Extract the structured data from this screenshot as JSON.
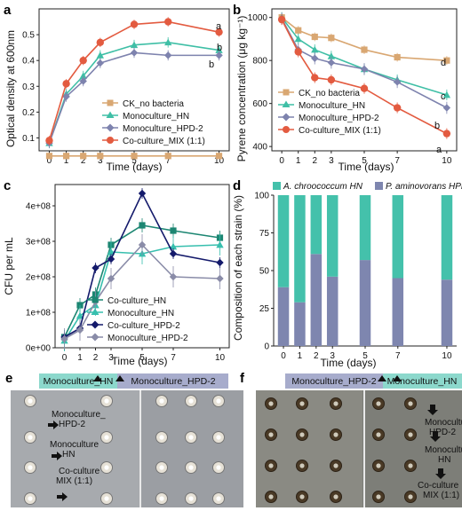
{
  "colors": {
    "ck": "#D9A772",
    "hn": "#3FBFA6",
    "hpd2": "#7E83AE",
    "mix": "#E35B40",
    "c_co_hn": "#1C8672",
    "c_mono_hn": "#37BFAE",
    "c_co_hpd2": "#141A6B",
    "c_mono_hpd2": "#8A8CA8",
    "d_hn": "#44C1AB",
    "d_hpd2": "#7E86AF",
    "head_hn": "#8CD8CC",
    "head_hpd2": "#A7ACCC"
  },
  "panels": {
    "a": {
      "letter": "a"
    },
    "b": {
      "letter": "b"
    },
    "c": {
      "letter": "c"
    },
    "d": {
      "letter": "d"
    },
    "e": {
      "letter": "e"
    },
    "f": {
      "letter": "f"
    }
  },
  "chart_data": [
    {
      "id": "a",
      "type": "line",
      "xlabel": "Time (days)",
      "ylabel": "Optical density at 600nm",
      "x": [
        0,
        1,
        2,
        3,
        5,
        7,
        10
      ],
      "xticks": [
        "0",
        "1",
        "2",
        "3",
        "5",
        "7",
        "10"
      ],
      "ylim": [
        0.05,
        0.6
      ],
      "yticks": [
        "0.1",
        "0.2",
        "0.3",
        "0.4",
        "0.5"
      ],
      "series": [
        {
          "name": "CK_no bacteria",
          "marker": "square",
          "values": [
            0.03,
            0.03,
            0.03,
            0.03,
            0.03,
            0.03,
            0.03
          ]
        },
        {
          "name": "Monoculture_HN",
          "marker": "triangle",
          "values": [
            0.08,
            0.27,
            0.34,
            0.42,
            0.46,
            0.47,
            0.44
          ]
        },
        {
          "name": "Monoculture_HPD-2",
          "marker": "diamond",
          "values": [
            0.08,
            0.26,
            0.32,
            0.39,
            0.43,
            0.42,
            0.42
          ]
        },
        {
          "name": "Co-culture_MIX (1:1)",
          "marker": "circle",
          "values": [
            0.09,
            0.31,
            0.4,
            0.47,
            0.54,
            0.55,
            0.51
          ]
        }
      ],
      "sig_labels": [
        "a",
        "b",
        "b"
      ]
    },
    {
      "id": "b",
      "type": "line",
      "xlabel": "Time (days)",
      "ylabel": "Pyrene concentration (μg kg⁻¹)",
      "x": [
        0,
        1,
        2,
        3,
        5,
        7,
        10
      ],
      "xticks": [
        "0",
        "1",
        "2",
        "3",
        "5",
        "7",
        "10"
      ],
      "ylim": [
        380,
        1040
      ],
      "yticks": [
        "400",
        "600",
        "800",
        "1000"
      ],
      "series": [
        {
          "name": "CK_no bacteria",
          "marker": "square",
          "values": [
            1000,
            940,
            910,
            905,
            850,
            815,
            800
          ]
        },
        {
          "name": "Monoculture_HN",
          "marker": "triangle",
          "values": [
            1000,
            900,
            850,
            820,
            760,
            710,
            640
          ]
        },
        {
          "name": "Monoculture_HPD-2",
          "marker": "diamond",
          "values": [
            995,
            850,
            810,
            790,
            760,
            700,
            580
          ]
        },
        {
          "name": "Co-culture_MIX (1:1)",
          "marker": "circle",
          "values": [
            990,
            840,
            720,
            710,
            670,
            580,
            460
          ]
        }
      ],
      "sig_labels": [
        "d",
        "c",
        "b",
        "a"
      ]
    },
    {
      "id": "c",
      "type": "line",
      "xlabel": "Time (days)",
      "ylabel": "CFU per mL",
      "x": [
        0,
        1,
        2,
        3,
        5,
        7,
        10
      ],
      "xticks": [
        "0",
        "1",
        "2",
        "3",
        "5",
        "7",
        "10"
      ],
      "ylim": [
        0,
        460000000
      ],
      "yticks": [
        "0e+00",
        "1e+08",
        "2e+08",
        "3e+08",
        "4e+08"
      ],
      "series": [
        {
          "name": "Co-culture_HN",
          "marker": "square",
          "values": [
            30000000,
            120000000,
            150000000,
            290000000,
            345000000,
            330000000,
            310000000
          ]
        },
        {
          "name": "Monoculture_HN",
          "marker": "triangle",
          "values": [
            20000000,
            90000000,
            120000000,
            270000000,
            265000000,
            285000000,
            290000000
          ]
        },
        {
          "name": "Co-culture_HPD-2",
          "marker": "diamond",
          "values": [
            30000000,
            55000000,
            225000000,
            250000000,
            435000000,
            265000000,
            240000000
          ]
        },
        {
          "name": "Monoculture_HPD-2",
          "marker": "diamond-light",
          "values": [
            25000000,
            50000000,
            130000000,
            195000000,
            290000000,
            200000000,
            195000000
          ]
        }
      ]
    },
    {
      "id": "d",
      "type": "bar",
      "xlabel": "Time (days)",
      "ylabel": "Composition of each strain (%)",
      "categories": [
        "0",
        "1",
        "2",
        "3",
        "5",
        "7",
        "10"
      ],
      "ylim": [
        0,
        100
      ],
      "yticks": [
        "0",
        "25",
        "50",
        "75",
        "100"
      ],
      "series": [
        {
          "name": "P. aminovorans HPD-2",
          "values": [
            39,
            29,
            61,
            46,
            57,
            45,
            44
          ]
        },
        {
          "name": "A. chroococcum HN",
          "values": [
            61,
            71,
            39,
            54,
            43,
            55,
            56
          ]
        }
      ],
      "legend": [
        "A. chroococcum HN",
        "P. aminovorans HPD-2"
      ]
    }
  ],
  "photo_e": {
    "head_left": "Monoculture_HN",
    "head_right": "Monoculture_HPD-2",
    "label_1a": "Monoculture_",
    "label_1b": "HPD-2",
    "label_2a": "Monoculture",
    "label_2b": "HN",
    "label_3a": "Co-culture",
    "label_3b": "MIX (1:1)"
  },
  "photo_f": {
    "head_left": "Monoculture_HPD-2",
    "head_right": "Monoculture_HN",
    "label_1a": "Monoculture",
    "label_1b": "HPD-2",
    "label_2a": "Monoculture",
    "label_2b": "HN",
    "label_3a": "Co-culture",
    "label_3b": "MIX (1:1)"
  }
}
